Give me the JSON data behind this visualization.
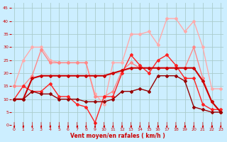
{
  "x": [
    0,
    1,
    2,
    3,
    4,
    5,
    6,
    7,
    8,
    9,
    10,
    11,
    12,
    13,
    14,
    15,
    16,
    17,
    18,
    19,
    20,
    21,
    22,
    23
  ],
  "series": [
    {
      "name": "rafales_max",
      "color": "#ffaaaa",
      "linewidth": 1.0,
      "marker": "D",
      "markersize": 2.0,
      "y": [
        15,
        25,
        30,
        30,
        25,
        24,
        24,
        24,
        24,
        12,
        8,
        24,
        24,
        35,
        35,
        36,
        31,
        41,
        41,
        36,
        40,
        30,
        14,
        14
      ]
    },
    {
      "name": "rafales_upper",
      "color": "#ff8888",
      "linewidth": 1.0,
      "marker": "D",
      "markersize": 2.0,
      "y": [
        15,
        15,
        19,
        29,
        24,
        24,
        24,
        24,
        24,
        11,
        11,
        13,
        21,
        24,
        22,
        22,
        22,
        22,
        22,
        22,
        30,
        18,
        9,
        5
      ]
    },
    {
      "name": "vent_max_red",
      "color": "#ff2222",
      "linewidth": 1.0,
      "marker": "D",
      "markersize": 2.0,
      "y": [
        10,
        15,
        13,
        13,
        16,
        11,
        11,
        8,
        7,
        1,
        11,
        11,
        20,
        27,
        23,
        20,
        25,
        27,
        23,
        18,
        18,
        8,
        6,
        6
      ]
    },
    {
      "name": "vent_mean_dark",
      "color": "#cc0000",
      "linewidth": 1.5,
      "marker": "D",
      "markersize": 2.0,
      "y": [
        10,
        10,
        18,
        19,
        19,
        19,
        19,
        19,
        19,
        19,
        19,
        20,
        21,
        22,
        22,
        22,
        22,
        22,
        22,
        22,
        22,
        17,
        9,
        5
      ]
    },
    {
      "name": "vent_min_darkest",
      "color": "#990000",
      "linewidth": 1.0,
      "marker": "D",
      "markersize": 2.0,
      "y": [
        10,
        10,
        13,
        12,
        12,
        10,
        10,
        10,
        9,
        9,
        9,
        10,
        13,
        13,
        14,
        13,
        19,
        19,
        19,
        17,
        7,
        6,
        5,
        5
      ]
    }
  ],
  "xlabel": "Vent moyen/en rafales ( km/h )",
  "xlim": [
    -0.3,
    23.3
  ],
  "ylim": [
    0,
    47
  ],
  "yticks": [
    0,
    5,
    10,
    15,
    20,
    25,
    30,
    35,
    40,
    45
  ],
  "xticks": [
    0,
    1,
    2,
    3,
    4,
    5,
    6,
    7,
    8,
    9,
    10,
    11,
    12,
    13,
    14,
    15,
    16,
    17,
    18,
    19,
    20,
    21,
    22,
    23
  ],
  "bg_color": "#cceeff",
  "grid_color": "#aacccc",
  "arrow_color": "#cc0000",
  "xlabel_color": "#cc0000",
  "tick_color": "#cc0000"
}
